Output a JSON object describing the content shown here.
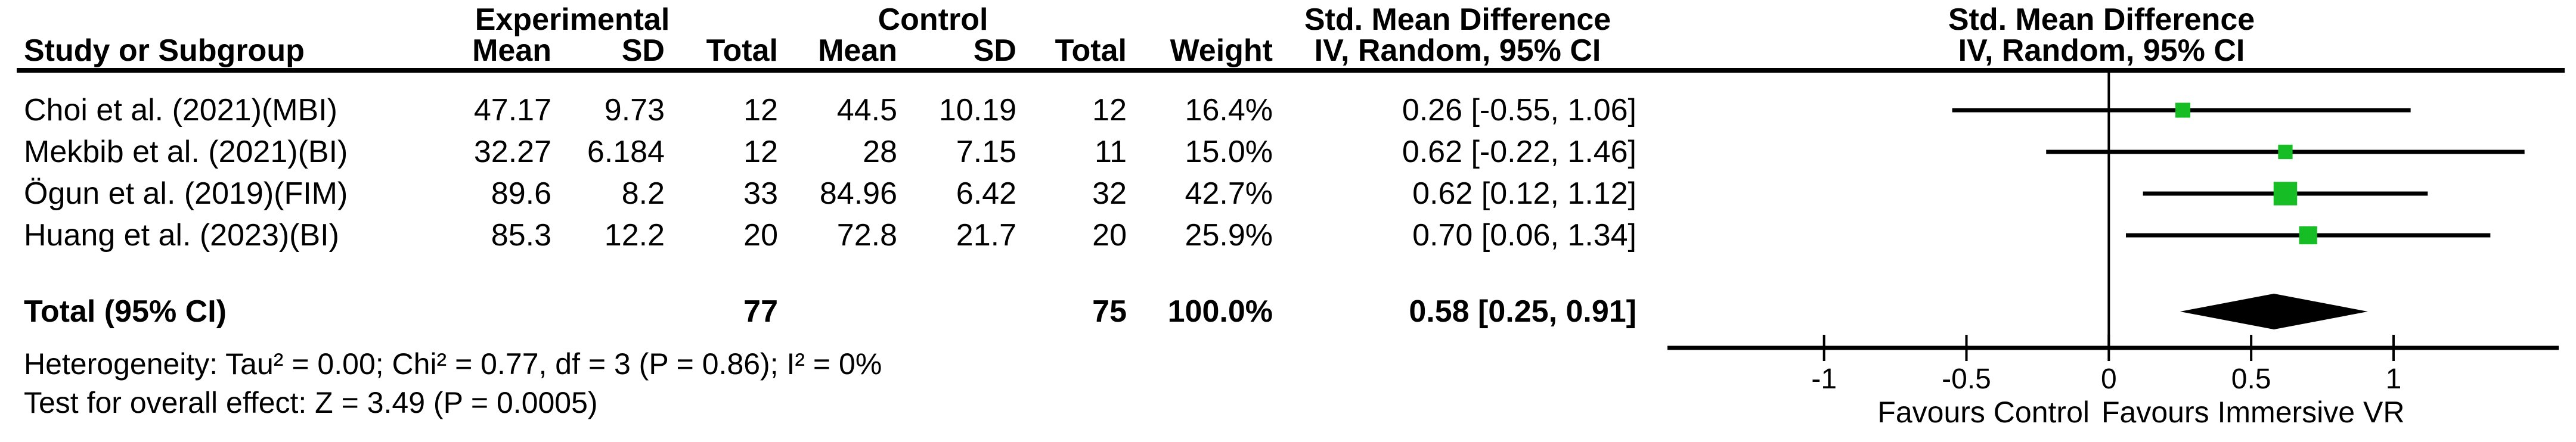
{
  "table": {
    "group_headers": {
      "experimental": "Experimental",
      "control": "Control",
      "smd_table": "Std. Mean Difference",
      "smd_plot": "Std. Mean Difference"
    },
    "col_headers": {
      "study": "Study or Subgroup",
      "exp_mean": "Mean",
      "exp_sd": "SD",
      "exp_total": "Total",
      "ctrl_mean": "Mean",
      "ctrl_sd": "SD",
      "ctrl_total": "Total",
      "weight": "Weight",
      "ci": "IV, Random, 95% CI",
      "ci_plot": "IV, Random, 95% CI"
    },
    "rows": [
      {
        "study": "Choi et al. (2021)(MBI)",
        "exp_mean": "47.17",
        "exp_sd": "9.73",
        "exp_total": "12",
        "ctrl_mean": "44.5",
        "ctrl_sd": "10.19",
        "ctrl_total": "12",
        "weight": "16.4%",
        "ci": "0.26 [-0.55, 1.06]"
      },
      {
        "study": "Mekbib et al. (2021)(BI)",
        "exp_mean": "32.27",
        "exp_sd": "6.184",
        "exp_total": "12",
        "ctrl_mean": "28",
        "ctrl_sd": "7.15",
        "ctrl_total": "11",
        "weight": "15.0%",
        "ci": "0.62 [-0.22, 1.46]"
      },
      {
        "study": "Ögun et al. (2019)(FIM)",
        "exp_mean": "89.6",
        "exp_sd": "8.2",
        "exp_total": "33",
        "ctrl_mean": "84.96",
        "ctrl_sd": "6.42",
        "ctrl_total": "32",
        "weight": "42.7%",
        "ci": "0.62 [0.12, 1.12]"
      },
      {
        "study": "Huang et al. (2023)(BI)",
        "exp_mean": "85.3",
        "exp_sd": "12.2",
        "exp_total": "20",
        "ctrl_mean": "72.8",
        "ctrl_sd": "21.7",
        "ctrl_total": "20",
        "weight": "25.9%",
        "ci": "0.70 [0.06, 1.34]"
      }
    ],
    "total": {
      "label": "Total (95% CI)",
      "exp_total": "77",
      "ctrl_total": "75",
      "weight": "100.0%",
      "ci": "0.58 [0.25, 0.91]"
    },
    "footers": {
      "heterogeneity": "Heterogeneity: Tau² = 0.00; Chi² = 0.77, df = 3 (P = 0.86); I² = 0%",
      "overall_effect": "Test for overall effect: Z = 3.49 (P = 0.0005)"
    }
  },
  "plot_labels": {
    "favours_left": "Favours Control",
    "favours_right": "Favours Immersive VR"
  },
  "chart_data": {
    "type": "forest",
    "title": "Std. Mean Difference",
    "subtitle": "IV, Random, 95% CI",
    "effect_measure": "Std. Mean Difference (IV, Random, 95% CI)",
    "studies": [
      {
        "name": "Choi et al. (2021)(MBI)",
        "est": 0.26,
        "lo": -0.55,
        "hi": 1.06,
        "weight_pct": 16.4
      },
      {
        "name": "Mekbib et al. (2021)(BI)",
        "est": 0.62,
        "lo": -0.22,
        "hi": 1.46,
        "weight_pct": 15.0
      },
      {
        "name": "Ögun et al. (2019)(FIM)",
        "est": 0.62,
        "lo": 0.12,
        "hi": 1.12,
        "weight_pct": 42.7
      },
      {
        "name": "Huang et al. (2023)(BI)",
        "est": 0.7,
        "lo": 0.06,
        "hi": 1.34,
        "weight_pct": 25.9
      }
    ],
    "total": {
      "est": 0.58,
      "lo": 0.25,
      "hi": 0.91
    },
    "axis": {
      "xmin": -1.55,
      "xmax": 1.58,
      "ticks": [
        -1,
        -0.5,
        0,
        0.5,
        1
      ],
      "tick_labels": [
        "-1",
        "-0.5",
        "0",
        "0.5",
        "1"
      ],
      "favours_left": "Favours Control",
      "favours_right": "Favours Immersive VR"
    },
    "marker_color": "#17bd24",
    "line_color": "#000000",
    "diamond_color": "#000000",
    "grid": false,
    "legend": false
  }
}
